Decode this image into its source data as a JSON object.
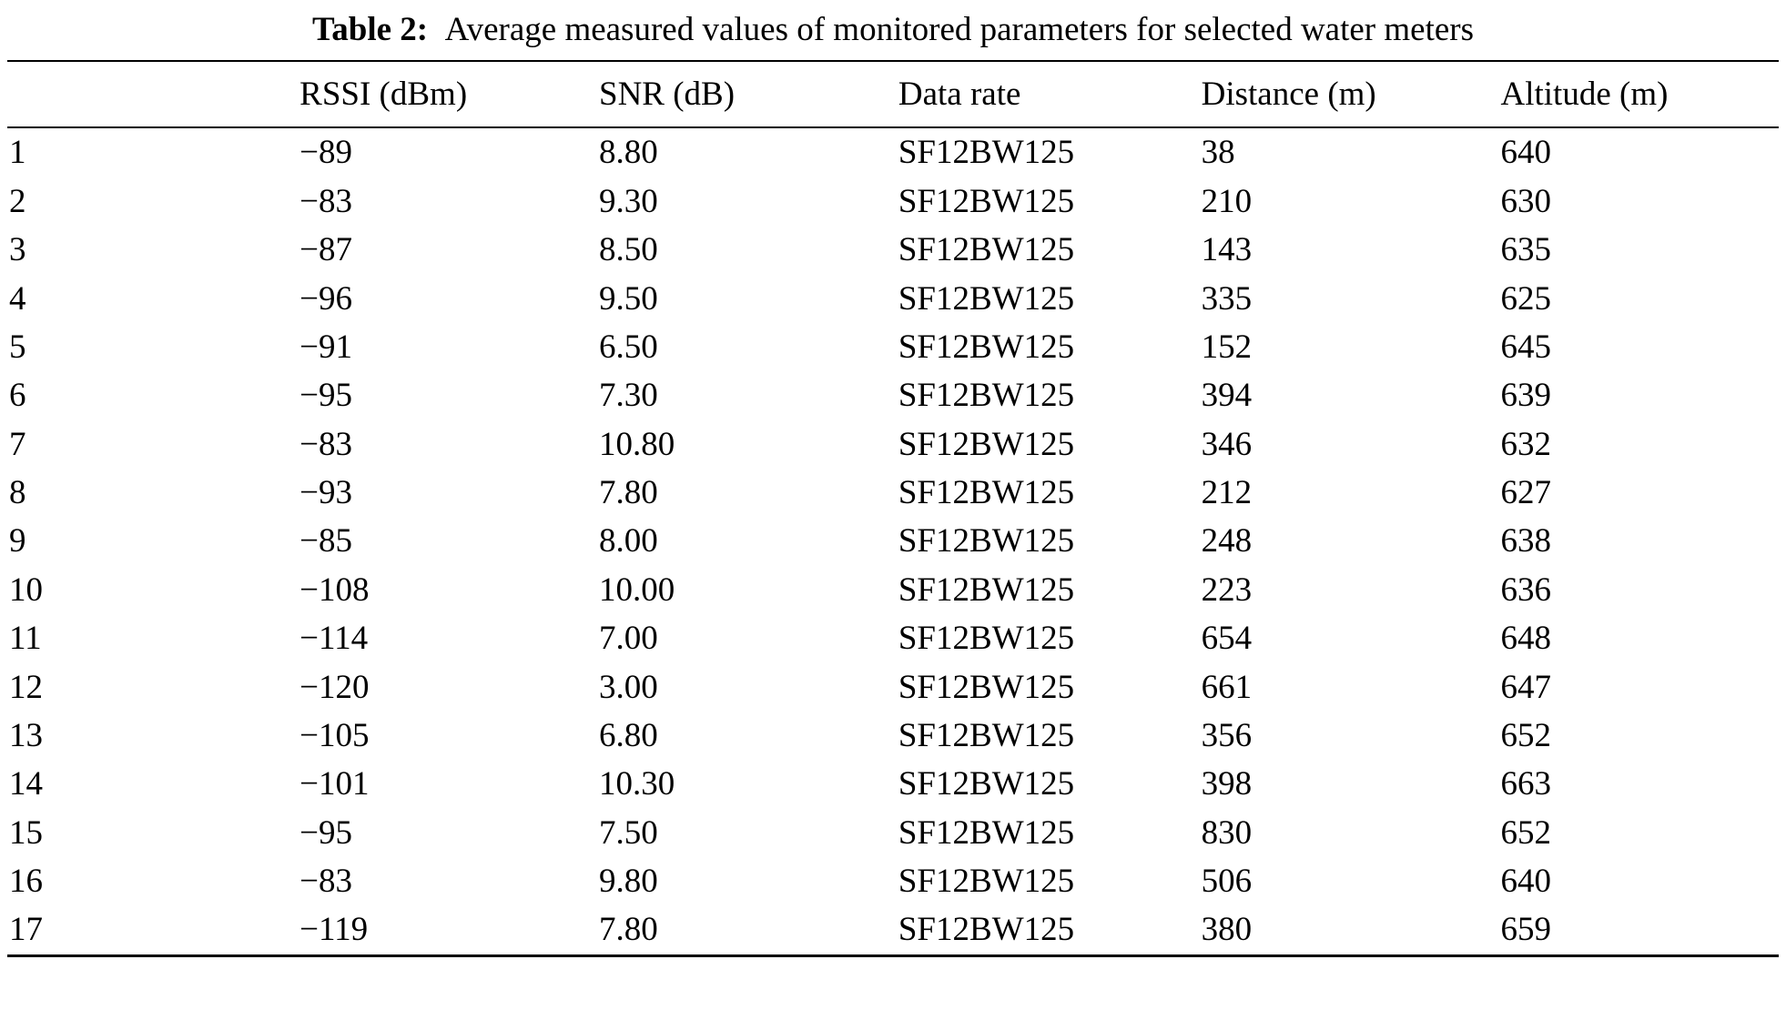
{
  "page": {
    "background": "#ffffff",
    "text_color": "#000000"
  },
  "caption": {
    "label": "Table 2:",
    "text": "Average measured values of monitored parameters for selected water meters"
  },
  "table": {
    "headers": [
      "",
      "RSSI (dBm)",
      "SNR (dB)",
      "Data rate",
      "Distance (m)",
      "Altitude (m)"
    ],
    "rows": [
      [
        "1",
        "−89",
        "8.80",
        "SF12BW125",
        "38",
        "640"
      ],
      [
        "2",
        "−83",
        "9.30",
        "SF12BW125",
        "210",
        "630"
      ],
      [
        "3",
        "−87",
        "8.50",
        "SF12BW125",
        "143",
        "635"
      ],
      [
        "4",
        "−96",
        "9.50",
        "SF12BW125",
        "335",
        "625"
      ],
      [
        "5",
        "−91",
        "6.50",
        "SF12BW125",
        "152",
        "645"
      ],
      [
        "6",
        "−95",
        "7.30",
        "SF12BW125",
        "394",
        "639"
      ],
      [
        "7",
        "−83",
        "10.80",
        "SF12BW125",
        "346",
        "632"
      ],
      [
        "8",
        "−93",
        "7.80",
        "SF12BW125",
        "212",
        "627"
      ],
      [
        "9",
        "−85",
        "8.00",
        "SF12BW125",
        "248",
        "638"
      ],
      [
        "10",
        "−108",
        "10.00",
        "SF12BW125",
        "223",
        "636"
      ],
      [
        "11",
        "−114",
        "7.00",
        "SF12BW125",
        "654",
        "648"
      ],
      [
        "12",
        "−120",
        "3.00",
        "SF12BW125",
        "661",
        "647"
      ],
      [
        "13",
        "−105",
        "6.80",
        "SF12BW125",
        "356",
        "652"
      ],
      [
        "14",
        "−101",
        "10.30",
        "SF12BW125",
        "398",
        "663"
      ],
      [
        "15",
        "−95",
        "7.50",
        "SF12BW125",
        "830",
        "652"
      ],
      [
        "16",
        "−83",
        "9.80",
        "SF12BW125",
        "506",
        "640"
      ],
      [
        "17",
        "−119",
        "7.80",
        "SF12BW125",
        "380",
        "659"
      ]
    ]
  }
}
